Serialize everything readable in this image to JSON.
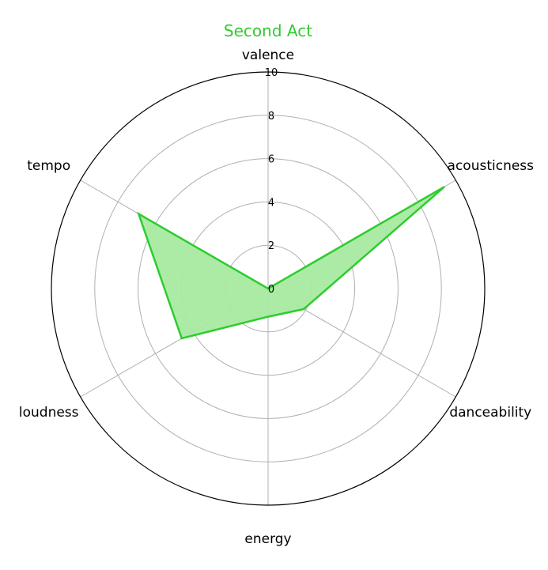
{
  "chart_data": {
    "type": "radar",
    "title": "Second Act",
    "axes": [
      "valence",
      "acousticness",
      "danceability",
      "energy",
      "loudness",
      "tempo"
    ],
    "series": [
      {
        "values": [
          0,
          9.4,
          1.9,
          1.3,
          4.6,
          6.9
        ]
      }
    ],
    "r_ticks": [
      "0",
      "2",
      "4",
      "6",
      "8",
      "10"
    ],
    "rlim": [
      0,
      10
    ],
    "grid": true,
    "colors": {
      "title": "#2ecc2e",
      "line": "#2ecc2e",
      "fill": "#a8eaa1",
      "grid": "#b0b0b0",
      "frame": "#000000"
    }
  }
}
